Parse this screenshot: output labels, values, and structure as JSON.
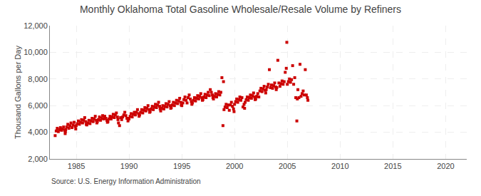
{
  "chart_data": {
    "type": "scatter",
    "title": "Monthly Oklahoma Total Gasoline Wholesale/Resale Volume by Refiners",
    "ylabel": "Thousand Gallons per Day",
    "annotations": [
      "Source: U.S. Energy Information Administration"
    ],
    "color": "#cc0000",
    "marker": "square",
    "grid": true,
    "xlim": [
      1982.5,
      2022
    ],
    "xticks": [
      1985,
      1990,
      1995,
      2000,
      2005,
      2010,
      2015,
      2020
    ],
    "ylim": [
      2000,
      12000
    ],
    "yticks": [
      {
        "value": 2000,
        "label": "2,000"
      },
      {
        "value": 4000,
        "label": "4,000"
      },
      {
        "value": 6000,
        "label": "6,000"
      },
      {
        "value": 8000,
        "label": "8,000"
      },
      {
        "value": 10000,
        "label": "10,000"
      },
      {
        "value": 12000,
        "label": "12,000"
      }
    ],
    "x": [
      1983.0,
      1983.1,
      1983.2,
      1983.3,
      1983.4,
      1983.5,
      1983.6,
      1983.7,
      1983.8,
      1983.9,
      1983.95,
      1983.97,
      1984.0,
      1984.1,
      1984.2,
      1984.3,
      1984.4,
      1984.5,
      1984.6,
      1984.7,
      1984.8,
      1984.9,
      1984.95,
      1985.0,
      1985.1,
      1985.2,
      1985.3,
      1985.4,
      1985.5,
      1985.6,
      1985.7,
      1985.8,
      1985.9,
      1985.95,
      1986.0,
      1986.1,
      1986.2,
      1986.3,
      1986.4,
      1986.5,
      1986.6,
      1986.7,
      1986.8,
      1986.9,
      1986.95,
      1987.0,
      1987.1,
      1987.2,
      1987.3,
      1987.4,
      1987.5,
      1987.6,
      1987.7,
      1987.8,
      1987.9,
      1987.95,
      1988.0,
      1988.1,
      1988.2,
      1988.3,
      1988.4,
      1988.5,
      1988.6,
      1988.7,
      1988.8,
      1988.9,
      1988.95,
      1989.0,
      1989.1,
      1989.2,
      1989.3,
      1989.4,
      1989.5,
      1989.6,
      1989.7,
      1989.8,
      1989.9,
      1989.95,
      1990.0,
      1990.1,
      1990.2,
      1990.3,
      1990.4,
      1990.5,
      1990.6,
      1990.7,
      1990.8,
      1990.9,
      1990.95,
      1991.0,
      1991.1,
      1991.2,
      1991.3,
      1991.4,
      1991.5,
      1991.6,
      1991.7,
      1991.8,
      1991.9,
      1991.95,
      1992.0,
      1992.1,
      1992.2,
      1992.3,
      1992.4,
      1992.5,
      1992.6,
      1992.7,
      1992.8,
      1992.9,
      1992.95,
      1993.0,
      1993.1,
      1993.2,
      1993.3,
      1993.4,
      1993.5,
      1993.6,
      1993.7,
      1993.8,
      1993.9,
      1993.95,
      1994.0,
      1994.1,
      1994.2,
      1994.3,
      1994.4,
      1994.5,
      1994.6,
      1994.7,
      1994.8,
      1994.9,
      1994.95,
      1995.0,
      1995.1,
      1995.2,
      1995.3,
      1995.4,
      1995.5,
      1995.6,
      1995.7,
      1995.8,
      1995.9,
      1995.95,
      1996.0,
      1996.1,
      1996.2,
      1996.3,
      1996.4,
      1996.5,
      1996.6,
      1996.7,
      1996.8,
      1996.9,
      1996.95,
      1997.0,
      1997.1,
      1997.2,
      1997.3,
      1997.4,
      1997.5,
      1997.6,
      1997.7,
      1997.8,
      1997.9,
      1997.95,
      1998.0,
      1998.1,
      1998.2,
      1998.3,
      1998.4,
      1998.5,
      1998.6,
      1998.7,
      1998.8,
      1998.9,
      1998.95,
      1999.0,
      1999.1,
      1999.2,
      1999.3,
      1999.4,
      1999.5,
      1999.6,
      1999.7,
      1999.8,
      1999.9,
      1999.95,
      2000.0,
      2000.1,
      2000.2,
      2000.3,
      2000.4,
      2000.5,
      2000.6,
      2000.7,
      2000.8,
      2000.9,
      2000.95,
      2001.0,
      2001.1,
      2001.2,
      2001.3,
      2001.4,
      2001.5,
      2001.6,
      2001.7,
      2001.8,
      2001.9,
      2001.95,
      2002.0,
      2002.1,
      2002.2,
      2002.3,
      2002.4,
      2002.5,
      2002.6,
      2002.7,
      2002.8,
      2002.9,
      2002.95,
      2003.0,
      2003.1,
      2003.2,
      2003.3,
      2003.4,
      2003.5,
      2003.6,
      2003.7,
      2003.8,
      2003.9,
      2003.95,
      2004.0,
      2004.1,
      2004.2,
      2004.3,
      2004.4,
      2004.5,
      2004.6,
      2004.7,
      2004.8,
      2004.9,
      2004.95,
      2005.0,
      2005.1,
      2005.2,
      2005.3,
      2005.4,
      2005.5,
      2005.6,
      2005.7,
      2005.8,
      2005.9,
      2005.95,
      2006.0,
      2006.1,
      2006.2,
      2006.3,
      2006.4,
      2006.5,
      2006.6,
      2006.7,
      2006.8,
      2006.9,
      2006.95
    ],
    "values": [
      3750,
      4100,
      4300,
      4050,
      4200,
      4350,
      4150,
      4250,
      4400,
      4150,
      3900,
      4050,
      4200,
      4400,
      4600,
      4300,
      4500,
      4700,
      4350,
      4550,
      4750,
      4450,
      4250,
      4500,
      4650,
      4850,
      4600,
      4750,
      4950,
      4700,
      4900,
      5100,
      4800,
      4600,
      4550,
      4700,
      4900,
      4650,
      4850,
      5050,
      4800,
      5000,
      5200,
      4900,
      4700,
      4800,
      4950,
      5150,
      4900,
      5050,
      5250,
      5000,
      5200,
      5050,
      4900,
      4750,
      4800,
      5000,
      5200,
      5000,
      5150,
      5350,
      5100,
      5300,
      5450,
      5150,
      4950,
      4700,
      4500,
      5100,
      4950,
      5150,
      5300,
      5500,
      5250,
      5050,
      4850,
      5050,
      5000,
      5200,
      5400,
      5150,
      5350,
      5500,
      5300,
      5500,
      5700,
      5400,
      5200,
      5300,
      5500,
      5700,
      5450,
      5650,
      5850,
      5600,
      5800,
      6000,
      5700,
      5500,
      5550,
      5750,
      5950,
      5700,
      5900,
      6100,
      5850,
      6050,
      6250,
      5950,
      5750,
      5600,
      5800,
      6000,
      5750,
      5950,
      6150,
      5900,
      6100,
      6300,
      6000,
      5800,
      5850,
      6050,
      6250,
      6000,
      6200,
      6400,
      6150,
      6350,
      6550,
      6250,
      6050,
      6000,
      6200,
      6450,
      6650,
      6400,
      6200,
      6600,
      6800,
      6500,
      6300,
      6100,
      6200,
      6400,
      6600,
      6350,
      6550,
      6750,
      6500,
      6700,
      6900,
      6600,
      6400,
      6450,
      6650,
      6850,
      6600,
      6800,
      7000,
      6750,
      7200,
      7000,
      6800,
      6600,
      6500,
      6700,
      6900,
      6650,
      6850,
      7050,
      6800,
      7000,
      8100,
      4500,
      7800,
      5700,
      5900,
      6100,
      5850,
      6050,
      5650,
      6050,
      6250,
      5950,
      5750,
      5550,
      6100,
      6300,
      6500,
      6250,
      6450,
      6650,
      6400,
      6600,
      5900,
      6100,
      5800,
      6250,
      6450,
      6650,
      6400,
      6600,
      6800,
      6550,
      6750,
      6950,
      6650,
      6450,
      6500,
      6700,
      6900,
      6650,
      7100,
      7300,
      7050,
      7250,
      7450,
      7150,
      6950,
      7200,
      7400,
      7600,
      8700,
      7350,
      7550,
      7300,
      7500,
      7700,
      7400,
      7200,
      7350,
      9400,
      7700,
      7450,
      7650,
      7850,
      7600,
      7800,
      8500,
      8800,
      10750,
      7600,
      7800,
      8000,
      7750,
      7950,
      9000,
      7600,
      8100,
      6600,
      4850,
      6500,
      7200,
      6600,
      9100,
      6700,
      6900,
      7100,
      6800,
      8700,
      6800,
      6600,
      6400
    ]
  }
}
